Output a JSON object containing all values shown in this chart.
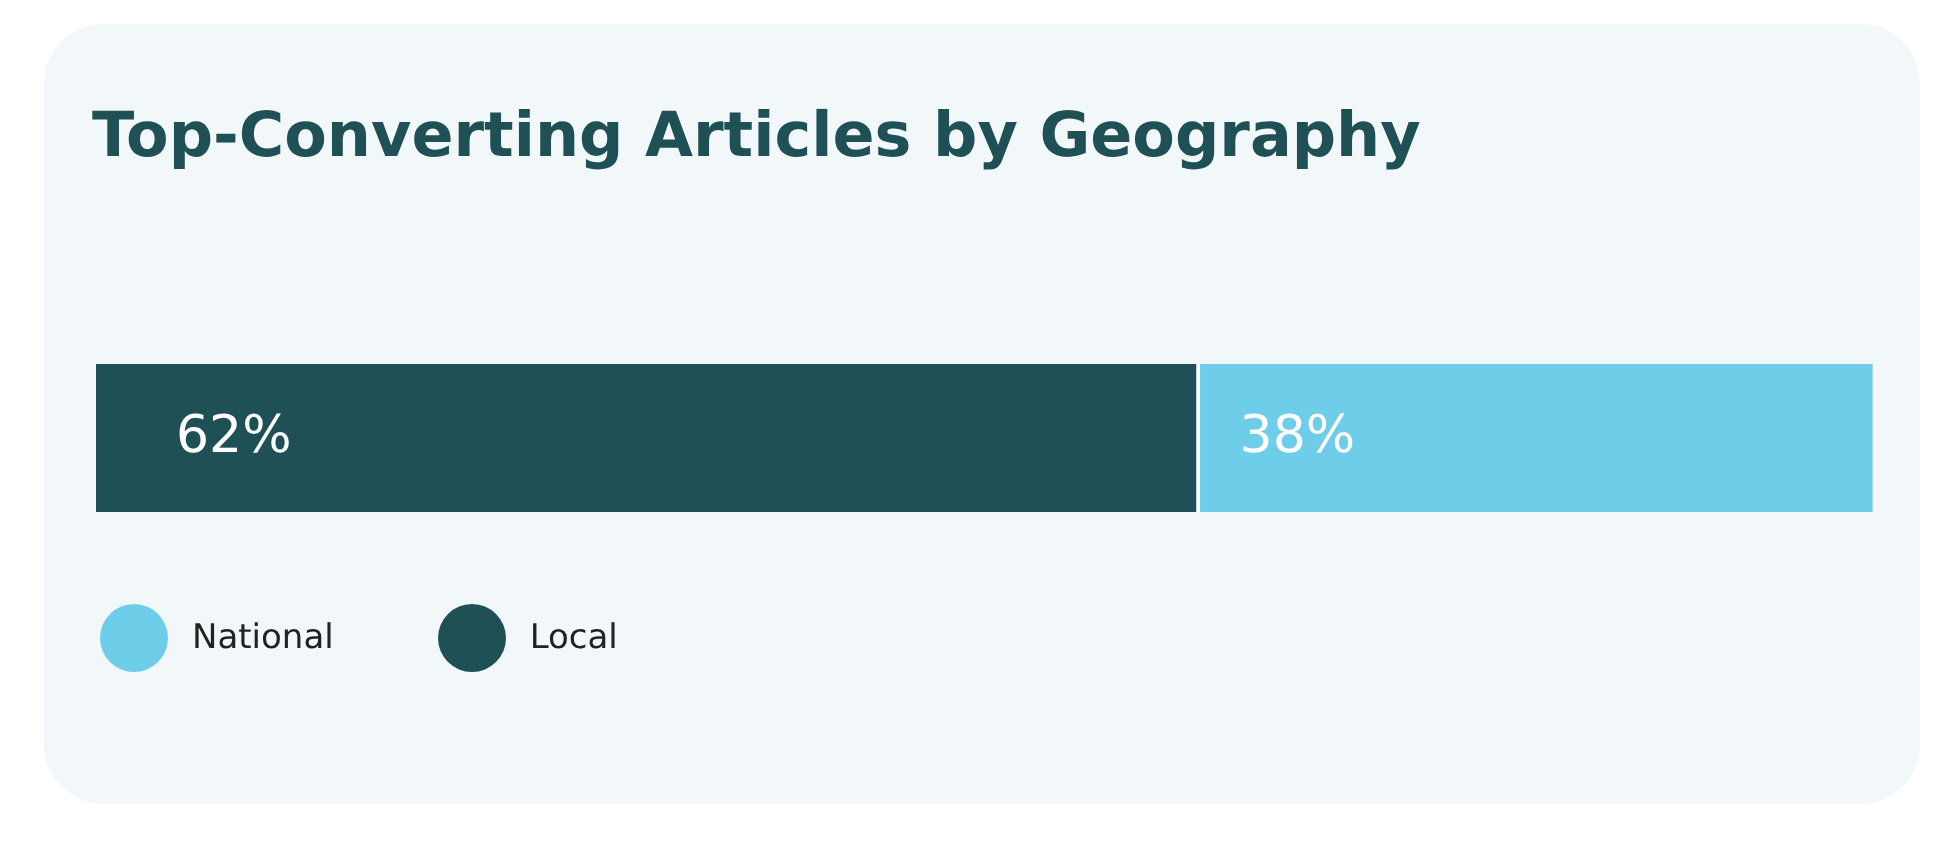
{
  "chart_data": {
    "type": "bar",
    "title": "Top-Converting Articles by Geography",
    "orientation": "horizontal",
    "stacked": true,
    "categories": [
      null
    ],
    "series": [
      {
        "name": "Local",
        "color": "#1e5055",
        "values": [
          62
        ],
        "value_labels": [
          "62%"
        ]
      },
      {
        "name": "National",
        "color": "#6ecde9",
        "values": [
          38
        ],
        "value_labels": [
          "38%"
        ]
      }
    ],
    "legend": "bottom left"
  }
}
